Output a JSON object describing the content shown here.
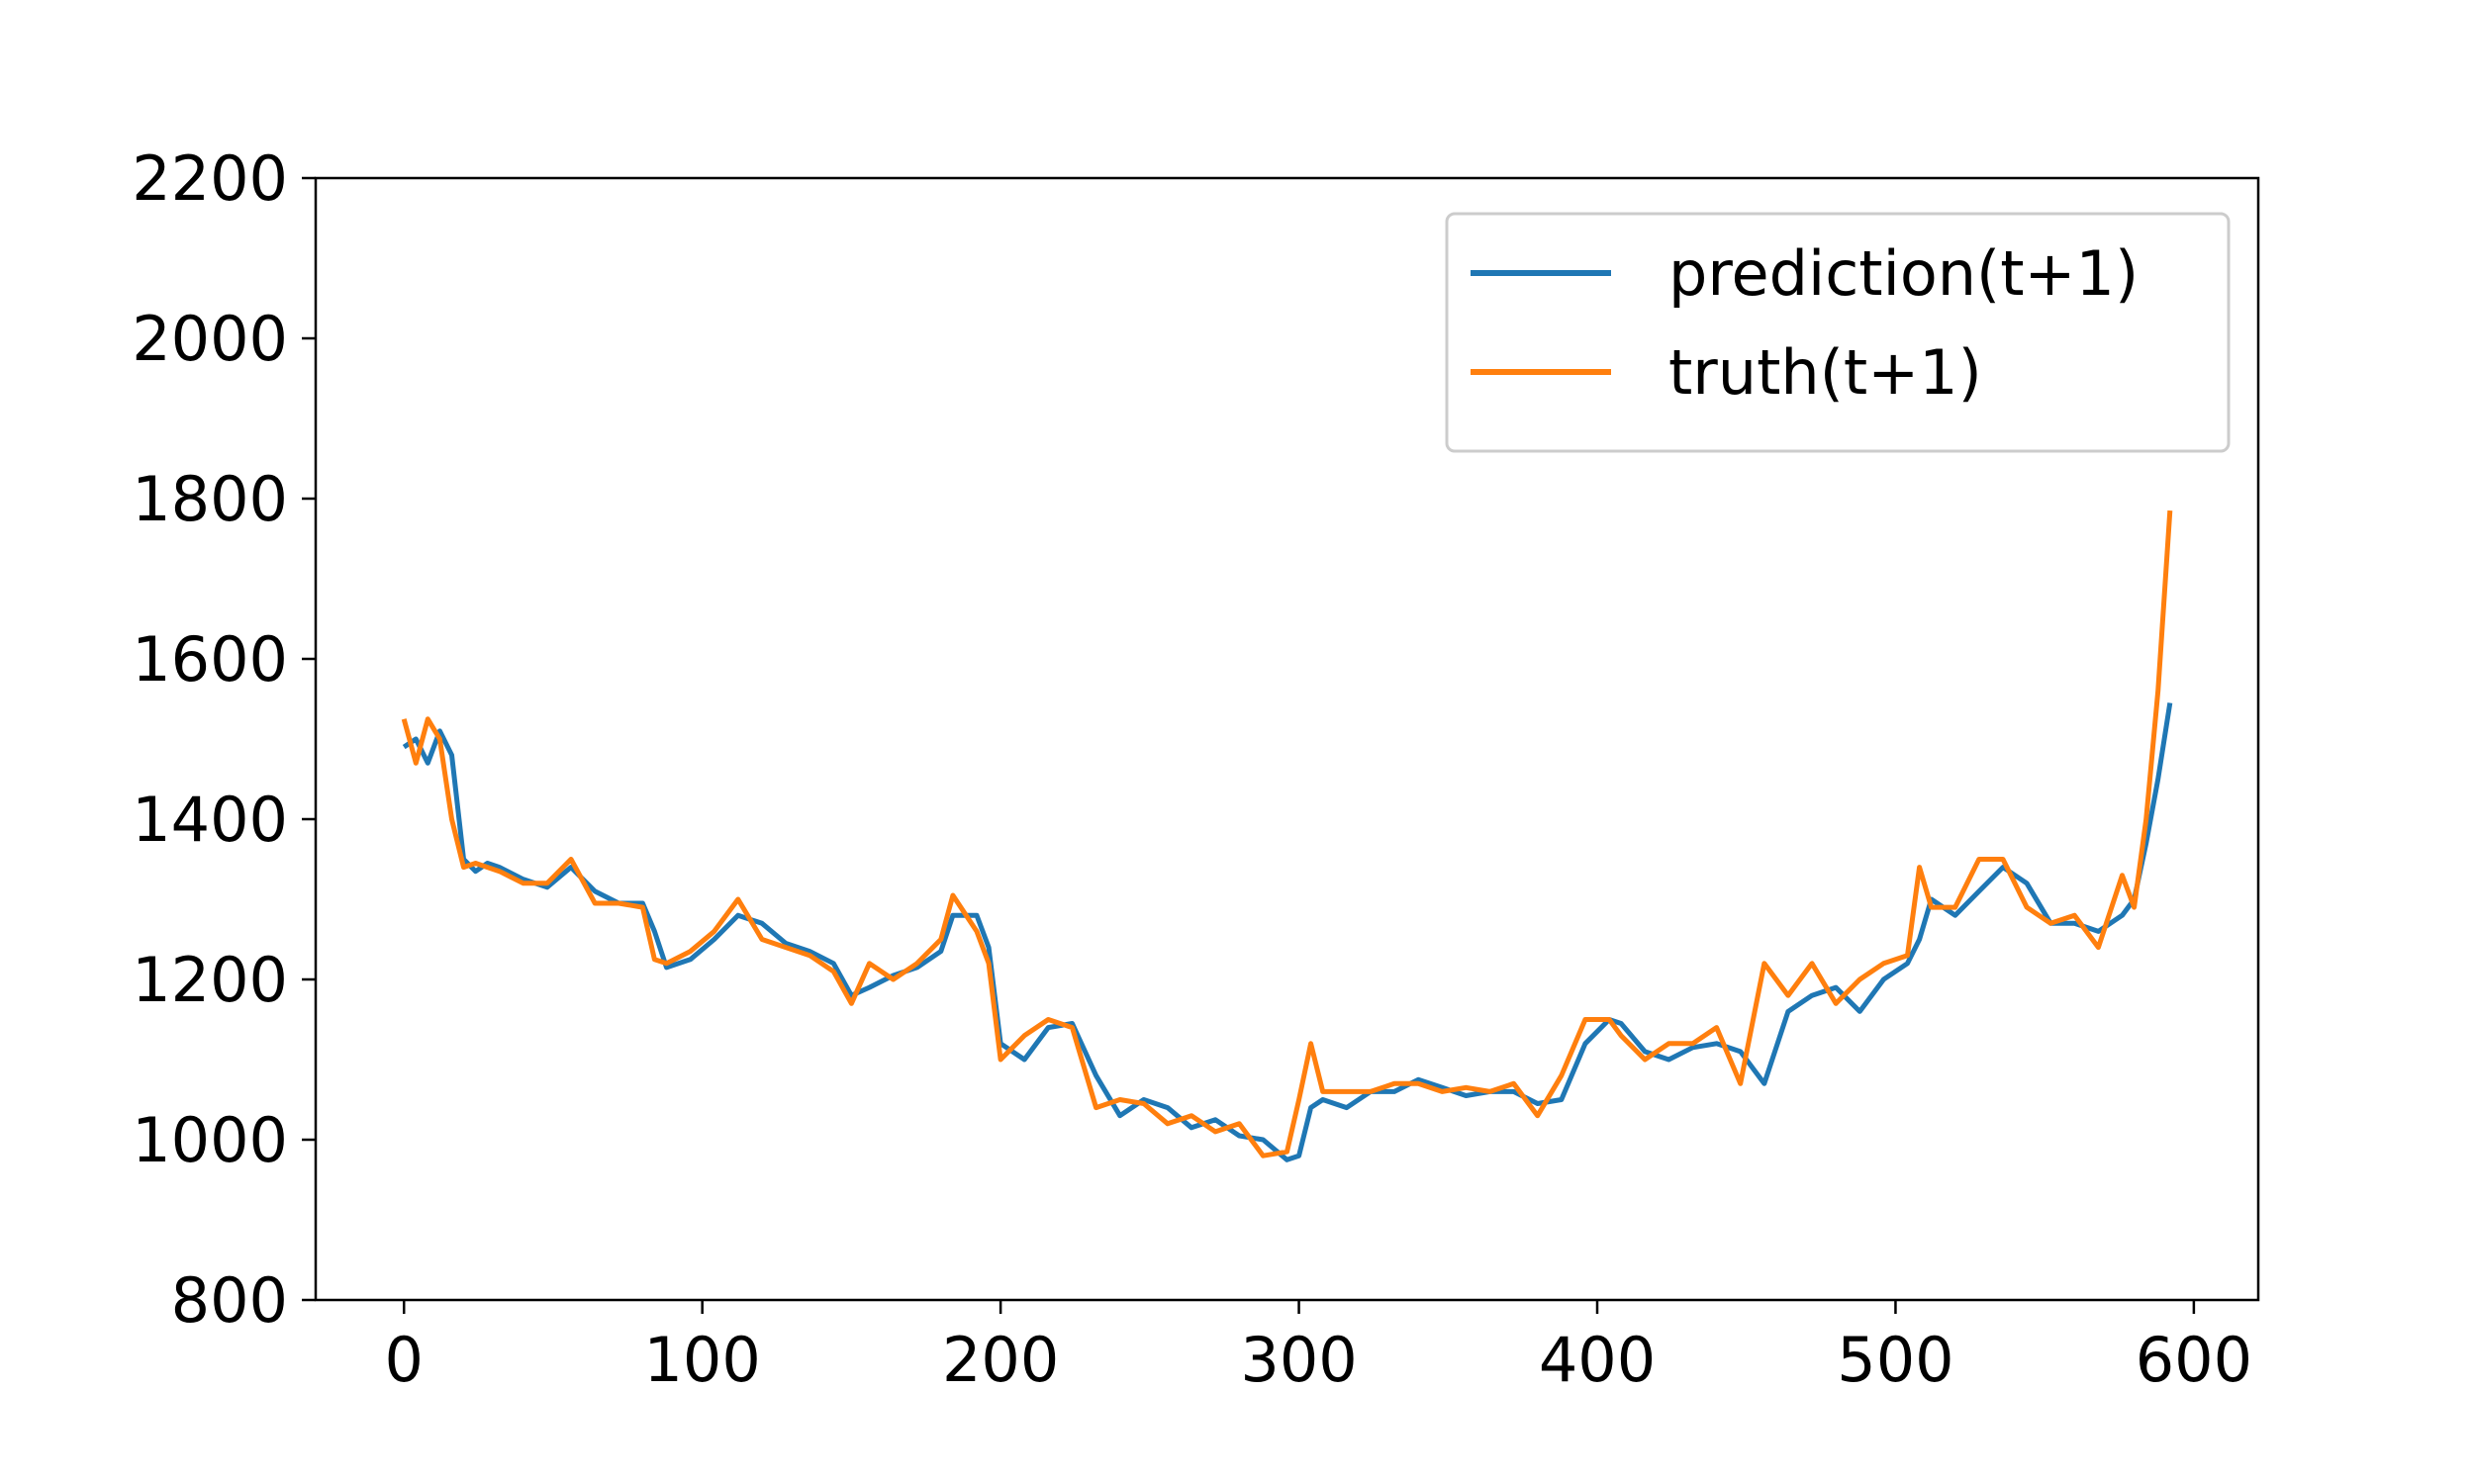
{
  "chart_data": {
    "type": "line",
    "x": [
      0,
      4,
      8,
      12,
      16,
      20,
      24,
      28,
      32,
      40,
      48,
      56,
      64,
      72,
      80,
      84,
      88,
      96,
      104,
      112,
      120,
      128,
      136,
      144,
      150,
      156,
      164,
      172,
      180,
      184,
      192,
      196,
      200,
      208,
      216,
      224,
      232,
      240,
      248,
      256,
      264,
      272,
      280,
      288,
      296,
      300,
      304,
      308,
      316,
      324,
      332,
      340,
      348,
      356,
      364,
      372,
      380,
      388,
      396,
      404,
      408,
      416,
      424,
      432,
      440,
      448,
      456,
      464,
      472,
      480,
      488,
      496,
      504,
      508,
      512,
      520,
      528,
      536,
      544,
      552,
      560,
      568,
      576,
      580,
      584,
      588,
      592
    ],
    "series": [
      {
        "name": "prediction(t+1)",
        "color": "#1f77b4",
        "values": [
          1490,
          1500,
          1470,
          1510,
          1480,
          1350,
          1335,
          1345,
          1340,
          1325,
          1315,
          1340,
          1310,
          1295,
          1295,
          1260,
          1215,
          1225,
          1250,
          1280,
          1270,
          1245,
          1235,
          1220,
          1180,
          1190,
          1205,
          1215,
          1235,
          1280,
          1280,
          1240,
          1120,
          1100,
          1140,
          1145,
          1080,
          1030,
          1050,
          1040,
          1015,
          1025,
          1005,
          1000,
          975,
          980,
          1040,
          1050,
          1040,
          1060,
          1060,
          1075,
          1065,
          1055,
          1060,
          1060,
          1045,
          1050,
          1120,
          1150,
          1145,
          1110,
          1100,
          1115,
          1120,
          1110,
          1070,
          1160,
          1180,
          1190,
          1160,
          1200,
          1220,
          1250,
          1300,
          1280,
          1310,
          1340,
          1320,
          1270,
          1270,
          1260,
          1280,
          1300,
          1370,
          1450,
          1545
        ]
      },
      {
        "name": "truth(t+1)",
        "color": "#ff7f0e",
        "values": [
          1525,
          1470,
          1525,
          1500,
          1400,
          1340,
          1345,
          1340,
          1335,
          1320,
          1320,
          1350,
          1295,
          1295,
          1290,
          1225,
          1220,
          1235,
          1260,
          1300,
          1250,
          1240,
          1230,
          1210,
          1170,
          1220,
          1200,
          1220,
          1250,
          1305,
          1260,
          1220,
          1100,
          1130,
          1150,
          1140,
          1040,
          1050,
          1045,
          1020,
          1030,
          1010,
          1020,
          980,
          985,
          1050,
          1120,
          1060,
          1060,
          1060,
          1070,
          1070,
          1060,
          1065,
          1060,
          1070,
          1030,
          1080,
          1150,
          1150,
          1130,
          1100,
          1120,
          1120,
          1140,
          1070,
          1220,
          1180,
          1220,
          1170,
          1200,
          1220,
          1230,
          1340,
          1290,
          1290,
          1350,
          1350,
          1290,
          1270,
          1280,
          1240,
          1330,
          1290,
          1400,
          1560,
          1785
        ]
      }
    ],
    "xlim": [
      -29.6,
      621.6
    ],
    "xticks": [
      0,
      100,
      200,
      300,
      400,
      500,
      600
    ],
    "ylim": [
      800,
      2200
    ],
    "yticks": [
      800,
      1000,
      1200,
      1400,
      1600,
      1800,
      2000,
      2200
    ],
    "grid": false,
    "legend": "upper right"
  }
}
